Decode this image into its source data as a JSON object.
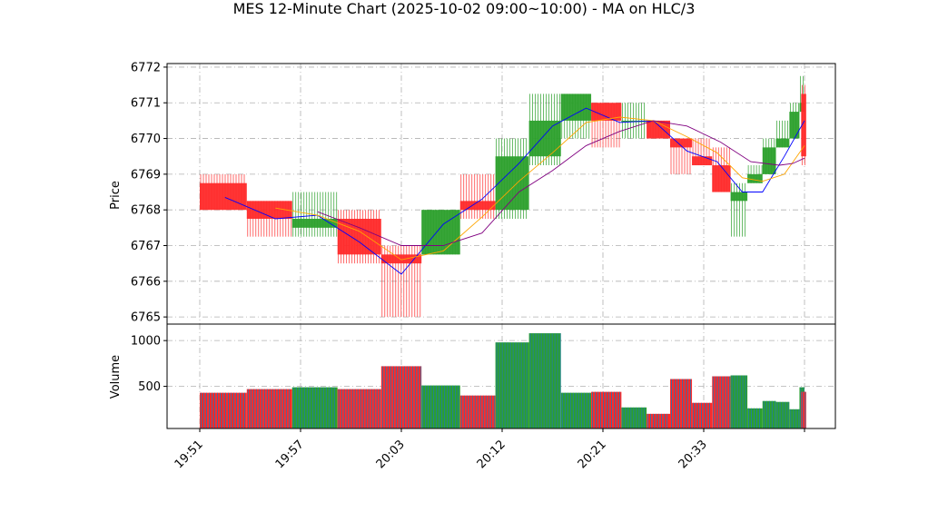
{
  "chart_data": {
    "type": "candlestick",
    "title": "MES 12-Minute Chart (2025-10-02 09:00~10:00) - MA on HLC/3",
    "price_panel": {
      "ylabel": "Price",
      "ylim": [
        6764.8,
        6772.1
      ],
      "yticks": [
        "6765",
        "6766",
        "6767",
        "6768",
        "6769",
        "6770",
        "6771",
        "6772"
      ],
      "grid": true
    },
    "volume_panel": {
      "ylabel": "Volume",
      "ylim": [
        40,
        1180
      ],
      "yticks": [
        "500",
        "1000"
      ],
      "grid": true
    },
    "x_ticks": [
      {
        "label": "19:51",
        "t": 0
      },
      {
        "label": "19:57",
        "t": 6
      },
      {
        "label": "20:03",
        "t": 12
      },
      {
        "label": "20:12",
        "t": 18
      },
      {
        "label": "20:21",
        "t": 24
      },
      {
        "label": "20:33",
        "t": 30
      },
      {
        "label": "",
        "t": 36
      }
    ],
    "colors": {
      "up": "#2ca02c",
      "down": "#ff2a2a",
      "volume_bar": "#1f77b4",
      "ma_fast": "#0000ff",
      "ma_mid": "#ffa500",
      "ma_slow": "#800080",
      "grid": "#b0b0b0"
    },
    "bars": [
      {
        "t0": 0.0,
        "t1": 2.8,
        "open": 6768.75,
        "high": 6769.0,
        "low": 6768.0,
        "close": 6768.0,
        "volume": 430
      },
      {
        "t0": 2.8,
        "t1": 5.5,
        "open": 6768.25,
        "high": 6768.25,
        "low": 6767.25,
        "close": 6767.75,
        "volume": 470
      },
      {
        "t0": 5.5,
        "t1": 8.2,
        "open": 6767.5,
        "high": 6768.5,
        "low": 6767.25,
        "close": 6767.75,
        "volume": 490
      },
      {
        "t0": 8.2,
        "t1": 10.8,
        "open": 6767.75,
        "high": 6768.0,
        "low": 6766.5,
        "close": 6766.75,
        "volume": 470
      },
      {
        "t0": 10.8,
        "t1": 13.2,
        "open": 6766.75,
        "high": 6767.0,
        "low": 6765.0,
        "close": 6766.5,
        "volume": 720
      },
      {
        "t0": 13.2,
        "t1": 15.5,
        "open": 6766.75,
        "high": 6768.0,
        "low": 6766.75,
        "close": 6768.0,
        "volume": 510
      },
      {
        "t0": 15.5,
        "t1": 17.6,
        "open": 6768.25,
        "high": 6769.0,
        "low": 6767.75,
        "close": 6768.0,
        "volume": 400
      },
      {
        "t0": 17.6,
        "t1": 19.6,
        "open": 6768.0,
        "high": 6770.0,
        "low": 6767.75,
        "close": 6769.5,
        "volume": 980
      },
      {
        "t0": 19.6,
        "t1": 21.5,
        "open": 6769.5,
        "high": 6771.25,
        "low": 6769.25,
        "close": 6770.5,
        "volume": 1080
      },
      {
        "t0": 21.5,
        "t1": 23.3,
        "open": 6770.5,
        "high": 6771.25,
        "low": 6770.0,
        "close": 6771.25,
        "volume": 430
      },
      {
        "t0": 23.3,
        "t1": 25.1,
        "open": 6771.0,
        "high": 6771.0,
        "low": 6769.75,
        "close": 6770.5,
        "volume": 440
      },
      {
        "t0": 25.1,
        "t1": 26.6,
        "open": 6770.5,
        "high": 6771.0,
        "low": 6770.0,
        "close": 6770.5,
        "volume": 270
      },
      {
        "t0": 26.6,
        "t1": 28.0,
        "open": 6770.5,
        "high": 6770.5,
        "low": 6770.0,
        "close": 6770.0,
        "volume": 200
      },
      {
        "t0": 28.0,
        "t1": 29.3,
        "open": 6770.0,
        "high": 6770.0,
        "low": 6769.0,
        "close": 6769.75,
        "volume": 580
      },
      {
        "t0": 29.3,
        "t1": 30.5,
        "open": 6769.5,
        "high": 6770.0,
        "low": 6769.25,
        "close": 6769.25,
        "volume": 320
      },
      {
        "t0": 30.5,
        "t1": 31.6,
        "open": 6769.25,
        "high": 6769.75,
        "low": 6768.5,
        "close": 6768.5,
        "volume": 610
      },
      {
        "t0": 31.6,
        "t1": 32.6,
        "open": 6768.25,
        "high": 6768.75,
        "low": 6767.25,
        "close": 6768.5,
        "volume": 620
      },
      {
        "t0": 32.6,
        "t1": 33.5,
        "open": 6768.75,
        "high": 6769.25,
        "low": 6768.75,
        "close": 6769.0,
        "volume": 260
      },
      {
        "t0": 33.5,
        "t1": 34.3,
        "open": 6769.0,
        "high": 6770.0,
        "low": 6769.0,
        "close": 6769.75,
        "volume": 340
      },
      {
        "t0": 34.3,
        "t1": 35.1,
        "open": 6769.75,
        "high": 6770.5,
        "low": 6769.75,
        "close": 6770.0,
        "volume": 330
      },
      {
        "t0": 35.1,
        "t1": 35.7,
        "open": 6770.0,
        "high": 6771.0,
        "low": 6770.0,
        "close": 6770.75,
        "volume": 250
      },
      {
        "t0": 35.7,
        "t1": 36.0,
        "open": 6770.75,
        "high": 6771.75,
        "low": 6770.75,
        "close": 6771.0,
        "volume": 490
      },
      {
        "t0": 35.8,
        "t1": 36.1,
        "open": 6771.25,
        "high": 6771.5,
        "low": 6769.25,
        "close": 6769.5,
        "volume": 440
      }
    ],
    "ma_fast": {
      "t": [
        1.5,
        4.5,
        7.0,
        9.5,
        12.0,
        14.5,
        16.8,
        19.0,
        21.0,
        23.0,
        25.0,
        27.0,
        29.0,
        30.8,
        32.3,
        33.5,
        34.8,
        36.0
      ],
      "v": [
        6768.35,
        6767.75,
        6767.85,
        6767.1,
        6766.2,
        6767.6,
        6768.3,
        6769.3,
        6770.35,
        6770.85,
        6770.45,
        6770.5,
        6769.65,
        6769.35,
        6768.5,
        6768.5,
        6769.5,
        6770.5
      ]
    },
    "ma_mid": {
      "t": [
        4.5,
        7.0,
        9.5,
        12.0,
        14.5,
        16.8,
        19.0,
        21.0,
        23.0,
        25.0,
        27.0,
        29.0,
        30.8,
        32.3,
        33.5,
        34.8,
        36.0
      ],
      "v": [
        6768.05,
        6767.85,
        6767.4,
        6766.6,
        6766.85,
        6767.8,
        6768.8,
        6769.6,
        6770.45,
        6770.6,
        6770.5,
        6770.05,
        6769.6,
        6768.9,
        6768.8,
        6769.0,
        6769.8
      ]
    },
    "ma_slow": {
      "t": [
        7.0,
        9.5,
        12.0,
        14.5,
        16.8,
        19.0,
        21.0,
        23.0,
        25.0,
        27.0,
        29.0,
        31.0,
        32.8,
        34.5,
        35.3,
        36.0
      ],
      "v": [
        6767.95,
        6767.5,
        6767.0,
        6767.0,
        6767.35,
        6768.5,
        6769.1,
        6769.8,
        6770.2,
        6770.5,
        6770.35,
        6769.9,
        6769.35,
        6769.25,
        6769.3,
        6769.45
      ]
    }
  }
}
